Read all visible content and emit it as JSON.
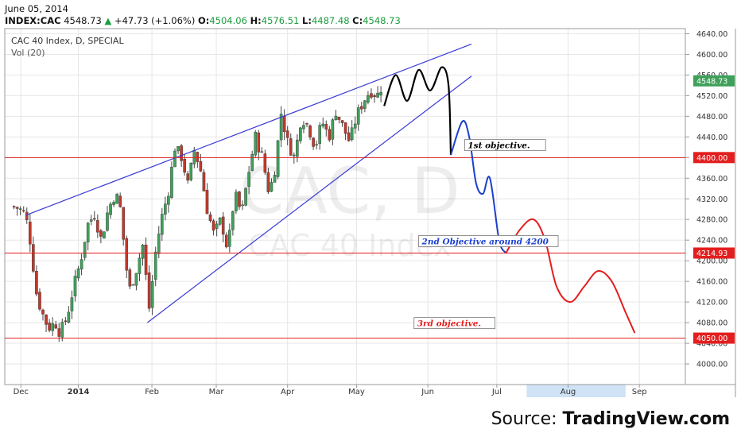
{
  "header": {
    "date": "June 05, 2014",
    "symbol": "INDEX:CAC",
    "last": "4548.73",
    "change": "+47.73 (+1.06%)",
    "open_label": "O:",
    "open": "4504.06",
    "high_label": "H:",
    "high": "4576.51",
    "low_label": "L:",
    "low": "4487.48",
    "close_label": "C:",
    "close": "4548.73"
  },
  "source": {
    "prefix": "Source: ",
    "name": "TradingView.com"
  },
  "chart_data": {
    "type": "candlestick",
    "title": "CAC 40 Index, D, SPECIAL",
    "indicator": "Vol (20)",
    "watermark": {
      "symbol": "CAC, D",
      "name": "CAC 40 Index"
    },
    "ylim": [
      3960,
      4650
    ],
    "y_ticks": [
      4000,
      4040,
      4080,
      4120,
      4160,
      4200,
      4240,
      4280,
      4320,
      4360,
      4400,
      4440,
      4480,
      4520,
      4560,
      4600,
      4640
    ],
    "x_ticks": [
      {
        "label": "Dec",
        "day": 5
      },
      {
        "label": "2014",
        "day": 30
      },
      {
        "label": "Feb",
        "day": 62
      },
      {
        "label": "Mar",
        "day": 90
      },
      {
        "label": "Apr",
        "day": 121
      },
      {
        "label": "May",
        "day": 151
      },
      {
        "label": "Jun",
        "day": 182
      },
      {
        "label": "Jul",
        "day": 212
      },
      {
        "label": "Aug",
        "day": 243
      },
      {
        "label": "Sep",
        "day": 274
      }
    ],
    "candle_path": [
      [
        1,
        4305
      ],
      [
        4,
        4302
      ],
      [
        7,
        4290
      ],
      [
        9,
        4240
      ],
      [
        12,
        4130
      ],
      [
        15,
        4090
      ],
      [
        17,
        4070
      ],
      [
        20,
        4080
      ],
      [
        22,
        4060
      ],
      [
        25,
        4090
      ],
      [
        28,
        4150
      ],
      [
        31,
        4200
      ],
      [
        34,
        4270
      ],
      [
        37,
        4290
      ],
      [
        40,
        4240
      ],
      [
        43,
        4300
      ],
      [
        46,
        4330
      ],
      [
        48,
        4310
      ],
      [
        52,
        4140
      ],
      [
        55,
        4180
      ],
      [
        58,
        4230
      ],
      [
        61,
        4100
      ],
      [
        63,
        4200
      ],
      [
        66,
        4280
      ],
      [
        69,
        4330
      ],
      [
        72,
        4420
      ],
      [
        75,
        4400
      ],
      [
        78,
        4340
      ],
      [
        80,
        4420
      ],
      [
        83,
        4380
      ],
      [
        86,
        4300
      ],
      [
        89,
        4250
      ],
      [
        92,
        4280
      ],
      [
        95,
        4220
      ],
      [
        98,
        4330
      ],
      [
        101,
        4290
      ],
      [
        104,
        4370
      ],
      [
        107,
        4440
      ],
      [
        110,
        4400
      ],
      [
        113,
        4330
      ],
      [
        116,
        4390
      ],
      [
        118,
        4490
      ],
      [
        121,
        4430
      ],
      [
        124,
        4400
      ],
      [
        127,
        4480
      ],
      [
        130,
        4460
      ],
      [
        133,
        4420
      ],
      [
        136,
        4470
      ],
      [
        139,
        4440
      ],
      [
        142,
        4490
      ],
      [
        145,
        4460
      ],
      [
        148,
        4430
      ],
      [
        151,
        4480
      ],
      [
        154,
        4510
      ],
      [
        157,
        4530
      ],
      [
        160,
        4520
      ],
      [
        163,
        4548.73
      ]
    ],
    "horizontal_lines": [
      {
        "value": 4400.0,
        "label": "4400.00"
      },
      {
        "value": 4214.93,
        "label": "4214.93"
      },
      {
        "value": 4050.0,
        "label": "4050.00"
      }
    ],
    "last_price": {
      "value": 4548.73,
      "label": "4548.73"
    },
    "wedge_upper": [
      [
        7,
        4288
      ],
      [
        201,
        4620
      ]
    ],
    "wedge_lower": [
      [
        60,
        4080
      ],
      [
        201,
        4558
      ]
    ],
    "projection_black": [
      [
        163,
        4500
      ],
      [
        168,
        4560
      ],
      [
        173,
        4510
      ],
      [
        178,
        4570
      ],
      [
        183,
        4530
      ],
      [
        188,
        4575
      ],
      [
        191,
        4540
      ],
      [
        192,
        4405
      ]
    ],
    "projection_blue": [
      [
        192,
        4405
      ],
      [
        197,
        4470
      ],
      [
        200,
        4440
      ],
      [
        203,
        4350
      ],
      [
        206,
        4330
      ],
      [
        209,
        4360
      ],
      [
        213,
        4240
      ],
      [
        216,
        4215
      ]
    ],
    "projection_red": [
      [
        216,
        4215
      ],
      [
        222,
        4260
      ],
      [
        228,
        4280
      ],
      [
        233,
        4240
      ],
      [
        238,
        4150
      ],
      [
        244,
        4120
      ],
      [
        250,
        4150
      ],
      [
        256,
        4180
      ],
      [
        262,
        4160
      ],
      [
        268,
        4100
      ],
      [
        272,
        4060
      ]
    ],
    "annotations": [
      {
        "text": "1st objective.",
        "color": "#000000",
        "day": 198,
        "value": 4418
      },
      {
        "text": "2nd Objective around 4200",
        "color": "#1a3fcf",
        "day": 178,
        "value": 4232
      },
      {
        "text": "3rd objective.",
        "color": "#e31e1e",
        "day": 176,
        "value": 4073
      }
    ],
    "highlight_range": {
      "from": 225,
      "to": 268
    },
    "colors": {
      "up": "#3fa05a",
      "down": "#c0392b",
      "hline": "#e31e1e",
      "wedge": "#3a3ad6",
      "black": "#000000",
      "blue": "#1a3fcf",
      "red": "#e31e1e",
      "highlight": "#cfe2f6"
    }
  }
}
